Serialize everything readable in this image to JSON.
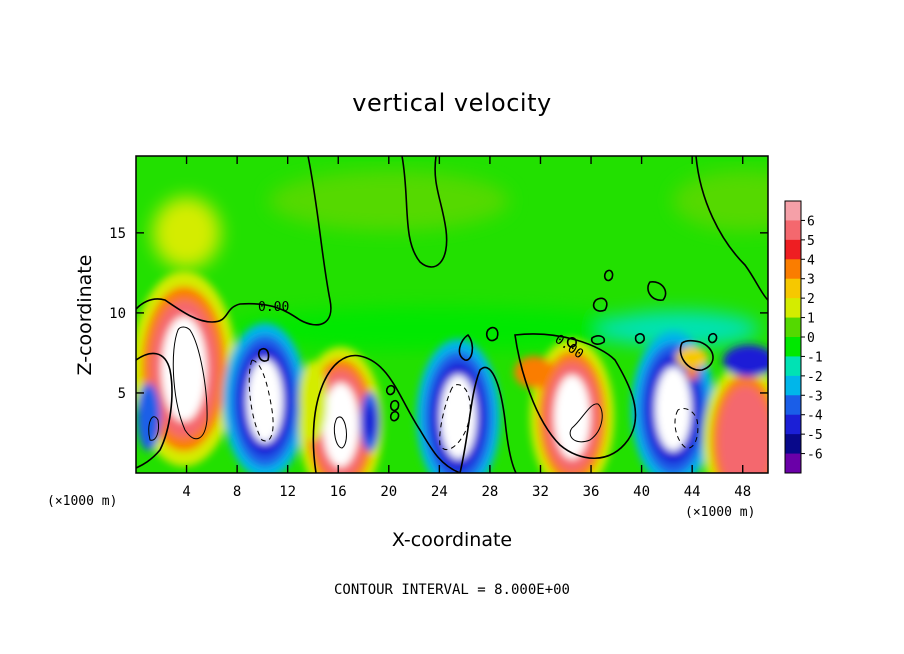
{
  "chart_data": {
    "type": "heatmap",
    "title": "vertical velocity",
    "xlabel": "X-coordinate",
    "ylabel": "Z-coordinate",
    "x_unit_label": "(×1000 m)",
    "y_unit_label": "(×1000 m)",
    "xlim": [
      0,
      50
    ],
    "ylim": [
      0,
      19.8
    ],
    "x_ticks": [
      4,
      8,
      12,
      16,
      20,
      24,
      28,
      32,
      36,
      40,
      44,
      48
    ],
    "y_ticks": [
      5,
      10,
      15
    ],
    "colorbar": {
      "ticks": [
        6,
        5,
        4,
        3,
        2,
        1,
        0,
        -1,
        -2,
        -3,
        -4,
        -5,
        -6
      ],
      "colors": [
        "#f5a0a8",
        "#f4686e",
        "#ee1e22",
        "#fa7d00",
        "#f6c800",
        "#d4ec00",
        "#54d900",
        "#00e800",
        "#00e2b4",
        "#00b6ea",
        "#1a5ee8",
        "#1b1fd6",
        "#08088a",
        "#6a00a8"
      ]
    },
    "features": [
      {
        "kind": "updraft",
        "x": 3.8,
        "z": 6.5,
        "peak": 14
      },
      {
        "kind": "downdraft",
        "x": 10.2,
        "z": 4.5,
        "peak": -10
      },
      {
        "kind": "updraft",
        "x": 16.2,
        "z": 3.0,
        "peak": 12
      },
      {
        "kind": "downdraft",
        "x": 25.5,
        "z": 3.5,
        "peak": -10
      },
      {
        "kind": "updraft",
        "x": 34.5,
        "z": 3.5,
        "peak": 10
      },
      {
        "kind": "downdraft",
        "x": 42.5,
        "z": 4.0,
        "peak": -12
      },
      {
        "kind": "updraft",
        "x": 48.2,
        "z": 2.0,
        "peak": 6
      }
    ],
    "contour_labels": [
      "0.00",
      "0.00"
    ],
    "note": "CONTOUR INTERVAL = 8.000E+00"
  }
}
